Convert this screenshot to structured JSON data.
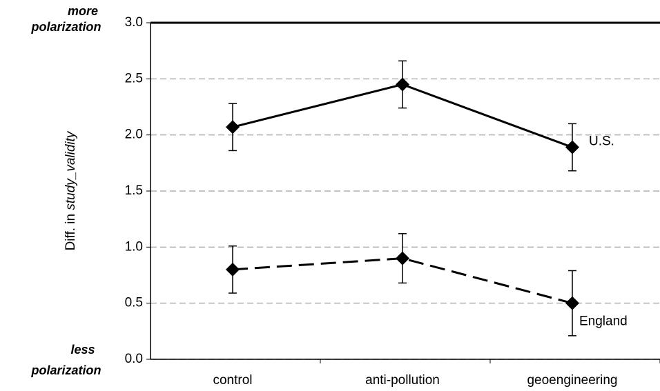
{
  "chart_data": {
    "type": "line",
    "y_label": {
      "prefix": "Diff. in",
      "italic": "study_validity"
    },
    "annotations": {
      "top": [
        "more",
        "polarization"
      ],
      "bottom": [
        "less",
        "polarization"
      ]
    },
    "categories": [
      "control",
      "anti-pollution",
      "geoengineering"
    ],
    "series": [
      {
        "name": "U.S.",
        "color": "#000000",
        "line_style": "solid",
        "values": [
          2.07,
          2.45,
          1.89
        ],
        "error": [
          0.21,
          0.21,
          0.21
        ]
      },
      {
        "name": "England",
        "color": "#000000",
        "line_style": "dashed",
        "values": [
          0.8,
          0.9,
          0.5
        ],
        "error": [
          0.21,
          0.22,
          0.29
        ]
      }
    ],
    "ylim": [
      0,
      3
    ],
    "yticks": [
      {
        "value": 0,
        "label": "0.0"
      },
      {
        "value": 0.5,
        "label": "0.5"
      },
      {
        "value": 1,
        "label": "1.0"
      },
      {
        "value": 1.5,
        "label": "1.5"
      },
      {
        "value": 2,
        "label": "2.0"
      },
      {
        "value": 2.5,
        "label": "2.5"
      },
      {
        "value": 3,
        "label": "3.0"
      }
    ],
    "grid": true
  }
}
